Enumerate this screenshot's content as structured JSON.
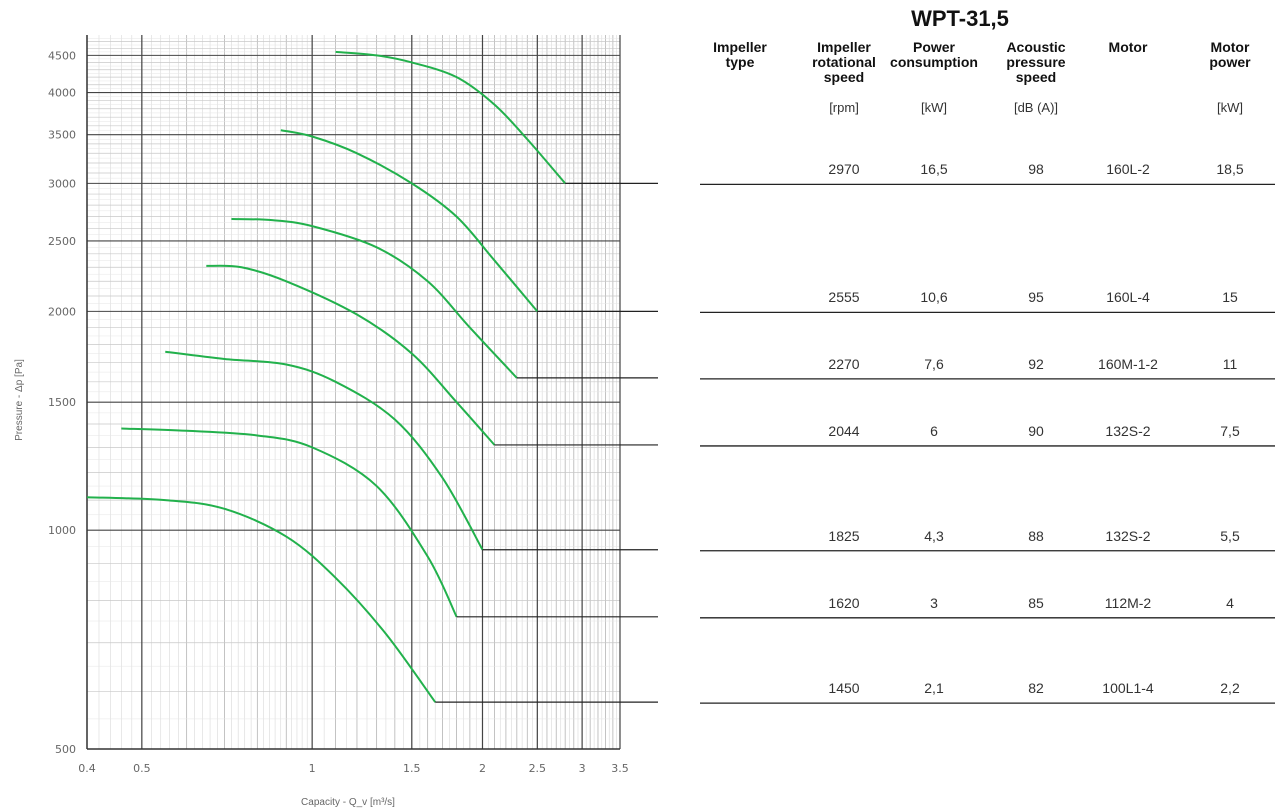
{
  "chart_data": {
    "type": "line",
    "xlabel": "Capacity - Q_v [m³/s]",
    "ylabel": "Pressure - Δp [Pa]",
    "x_scale": "log",
    "y_scale": "log",
    "xlim": [
      0.4,
      3.5
    ],
    "ylim": [
      500,
      4800
    ],
    "x_ticks": [
      "0.4",
      "0.5",
      "1",
      "1.5",
      "2",
      "2.5",
      "3",
      "3.5"
    ],
    "y_ticks": [
      "500",
      "1000",
      "1500",
      "2000",
      "2500",
      "3000",
      "3500",
      "4000",
      "4500"
    ],
    "grid": true,
    "line_color": "#22b14c",
    "series": [
      {
        "x": [
          1.1,
          1.3,
          1.5,
          1.8,
          2.1,
          2.4,
          2.8
        ],
        "y": [
          4550,
          4500,
          4400,
          4200,
          3850,
          3450,
          3000
        ]
      },
      {
        "x": [
          0.88,
          1.0,
          1.2,
          1.5,
          1.8,
          2.1,
          2.5
        ],
        "y": [
          3550,
          3480,
          3300,
          3000,
          2700,
          2350,
          2000
        ]
      },
      {
        "x": [
          0.72,
          0.85,
          1.0,
          1.3,
          1.6,
          1.9,
          2.3
        ],
        "y": [
          2680,
          2670,
          2620,
          2450,
          2200,
          1900,
          1620
        ]
      },
      {
        "x": [
          0.65,
          0.75,
          0.9,
          1.2,
          1.5,
          1.8,
          2.1
        ],
        "y": [
          2310,
          2300,
          2200,
          1980,
          1750,
          1500,
          1310
        ]
      },
      {
        "x": [
          0.55,
          0.7,
          0.9,
          1.1,
          1.4,
          1.7,
          2.0
        ],
        "y": [
          1760,
          1720,
          1690,
          1600,
          1420,
          1180,
          940
        ]
      },
      {
        "x": [
          0.46,
          0.6,
          0.8,
          1.0,
          1.3,
          1.6,
          1.8
        ],
        "y": [
          1380,
          1370,
          1350,
          1300,
          1150,
          920,
          760
        ]
      },
      {
        "x": [
          0.4,
          0.55,
          0.7,
          0.9,
          1.1,
          1.35,
          1.65
        ],
        "y": [
          1110,
          1100,
          1070,
          980,
          860,
          720,
          580
        ]
      }
    ]
  },
  "table": {
    "title": "WPT-31,5",
    "columns": [
      {
        "label": "Impeller\ntype",
        "unit": ""
      },
      {
        "label": "Impeller\nrotational\nspeed",
        "unit": "[rpm]"
      },
      {
        "label": "Power\nconsumption",
        "unit": "[kW]"
      },
      {
        "label": "Acoustic\npressure\nspeed",
        "unit": "[dB (A)]"
      },
      {
        "label": "Motor",
        "unit": ""
      },
      {
        "label": "Motor\npower",
        "unit": "[kW]"
      }
    ],
    "rows": [
      {
        "speed": "2970",
        "power": "16,5",
        "noise": "98",
        "motor": "160L-2",
        "motor_power": "18,5",
        "ref_pressure": 3000
      },
      {
        "speed": "2555",
        "power": "10,6",
        "noise": "95",
        "motor": "160L-4",
        "motor_power": "15",
        "ref_pressure": 2000
      },
      {
        "speed": "2270",
        "power": "7,6",
        "noise": "92",
        "motor": "160M-1-2",
        "motor_power": "11",
        "ref_pressure": 1620
      },
      {
        "speed": "2044",
        "power": "6",
        "noise": "90",
        "motor": "132S-2",
        "motor_power": "7,5",
        "ref_pressure": 1310
      },
      {
        "speed": "1825",
        "power": "4,3",
        "noise": "88",
        "motor": "132S-2",
        "motor_power": "5,5",
        "ref_pressure": 940
      },
      {
        "speed": "1620",
        "power": "3",
        "noise": "85",
        "motor": "112M-2",
        "motor_power": "4",
        "ref_pressure": 760
      },
      {
        "speed": "1450",
        "power": "2,1",
        "noise": "82",
        "motor": "100L1-4",
        "motor_power": "2,2",
        "ref_pressure": 580
      }
    ]
  }
}
